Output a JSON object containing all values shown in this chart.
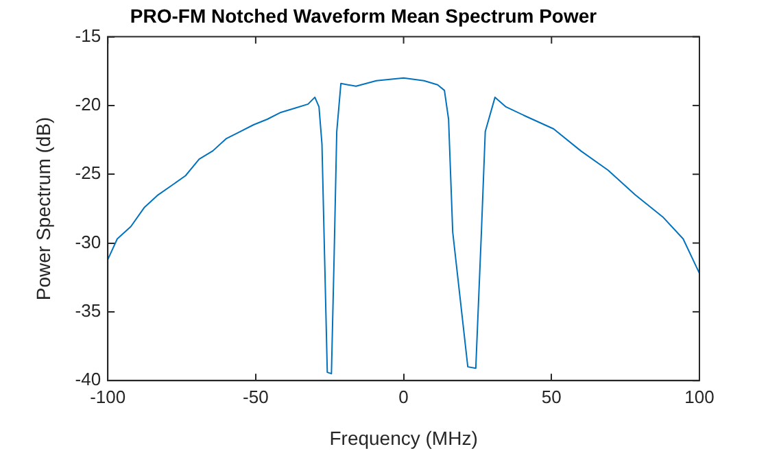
{
  "chart_data": {
    "type": "line",
    "title": "PRO-FM Notched Waveform Mean Spectrum Power",
    "xlabel": "Frequency (MHz)",
    "ylabel": "Power Spectrum (dB)",
    "xlim": [
      -100,
      100
    ],
    "xticks": [
      -100,
      -50,
      0,
      50,
      100
    ],
    "ylim": [
      -40,
      -15
    ],
    "yticks": [
      -40,
      -35,
      -30,
      -25,
      -20,
      -15
    ],
    "grid": false,
    "legend": false,
    "marker": "none",
    "line_style": "solid",
    "series": [
      {
        "color": "#0072bd",
        "x": [
          -100,
          -96.8,
          -92.2,
          -87.6,
          -83,
          -78.3,
          -73.7,
          -69.1,
          -64.5,
          -59.9,
          -55.3,
          -50.7,
          -46.1,
          -41.5,
          -36.9,
          -32.3,
          -30,
          -28.6,
          -27.6,
          -26.7,
          -25.8,
          -24.4,
          -23.5,
          -22.6,
          -21.2,
          -16.1,
          -9.2,
          0,
          6.9,
          11.5,
          13.8,
          15.2,
          16.6,
          21.7,
          24.4,
          26.3,
          27.6,
          30.9,
          34.6,
          41.5,
          50.7,
          59.9,
          69.1,
          78.3,
          87.6,
          94.5,
          100
        ],
        "values": [
          -31.2,
          -29.7,
          -28.8,
          -27.4,
          -26.5,
          -25.8,
          -25.1,
          -23.9,
          -23.3,
          -22.4,
          -21.9,
          -21.4,
          -21,
          -20.5,
          -20.2,
          -19.9,
          -19.4,
          -20.1,
          -22.8,
          -31.1,
          -39.4,
          -39.5,
          -31.1,
          -21.9,
          -18.4,
          -18.6,
          -18.2,
          -18,
          -18.2,
          -18.5,
          -18.9,
          -21,
          -29.2,
          -39,
          -39.1,
          -29.2,
          -21.9,
          -19.4,
          -20.1,
          -20.8,
          -21.7,
          -23.3,
          -24.7,
          -26.5,
          -28.1,
          -29.7,
          -32.2
        ]
      }
    ]
  }
}
